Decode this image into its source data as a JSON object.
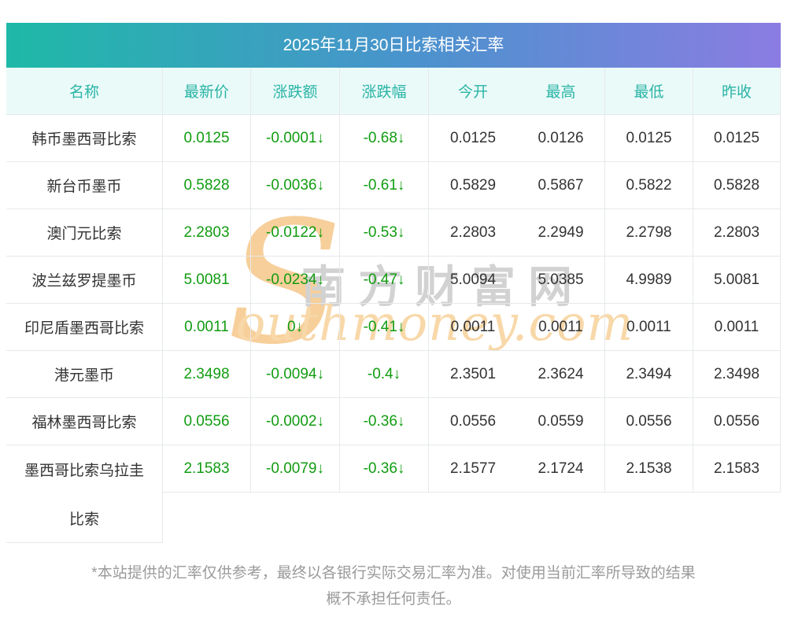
{
  "title": "2025年11月30日比索相关汇率",
  "colors": {
    "accent_teal": "#1eb9a7",
    "accent_blue": "#4a93cd",
    "accent_purple": "#8b7ce2",
    "header_text": "#2ab4a6",
    "header_bg": "#eafaf8",
    "down_green": "#119c11",
    "watermark_orange": "#f7cf9a",
    "watermark_gray": "#d2d2d2"
  },
  "table": {
    "headers": [
      "名称",
      "最新价",
      "涨跌额",
      "涨跌幅",
      "今开",
      "最高",
      "最低",
      "昨收"
    ],
    "header_keys": [
      "name",
      "latest",
      "change",
      "pct",
      "open",
      "high",
      "low",
      "prev"
    ],
    "rows": [
      {
        "name": "韩币墨西哥比索",
        "latest": "0.0125",
        "change": "-0.0001↓",
        "pct": "-0.68↓",
        "open": "0.0125",
        "high": "0.0126",
        "low": "0.0125",
        "prev": "0.0125"
      },
      {
        "name": "新台币墨币",
        "latest": "0.5828",
        "change": "-0.0036↓",
        "pct": "-0.61↓",
        "open": "0.5829",
        "high": "0.5867",
        "low": "0.5822",
        "prev": "0.5828"
      },
      {
        "name": "澳门元比索",
        "latest": "2.2803",
        "change": "-0.0122↓",
        "pct": "-0.53↓",
        "open": "2.2803",
        "high": "2.2949",
        "low": "2.2798",
        "prev": "2.2803"
      },
      {
        "name": "波兰兹罗提墨币",
        "latest": "5.0081",
        "change": "-0.0234↓",
        "pct": "-0.47↓",
        "open": "5.0094",
        "high": "5.0385",
        "low": "4.9989",
        "prev": "5.0081"
      },
      {
        "name": "印尼盾墨西哥比索",
        "latest": "0.0011",
        "change": "0↓",
        "pct": "-0.41↓",
        "open": "0.0011",
        "high": "0.0011",
        "low": "0.0011",
        "prev": "0.0011"
      },
      {
        "name": "港元墨币",
        "latest": "2.3498",
        "change": "-0.0094↓",
        "pct": "-0.4↓",
        "open": "2.3501",
        "high": "2.3624",
        "low": "2.3494",
        "prev": "2.3498"
      },
      {
        "name": "福林墨西哥比索",
        "latest": "0.0556",
        "change": "-0.0002↓",
        "pct": "-0.36↓",
        "open": "0.0556",
        "high": "0.0559",
        "low": "0.0556",
        "prev": "0.0556"
      },
      {
        "name": "墨西哥比索乌拉圭比索",
        "name_lines": [
          "墨西哥比索乌拉圭",
          "比索"
        ],
        "latest": "2.1583",
        "change": "-0.0079↓",
        "pct": "-0.36↓",
        "open": "2.1577",
        "high": "2.1724",
        "low": "2.1538",
        "prev": "2.1583"
      }
    ]
  },
  "watermark": {
    "s": "S",
    "cn": "南方财富网",
    "en": "outhmoney.com"
  },
  "footnote": {
    "line1": "*本站提供的汇率仅供参考，最终以各银行实际交易汇率为准。对使用当前汇率所导致的结果",
    "line2": "概不承担任何责任。"
  }
}
